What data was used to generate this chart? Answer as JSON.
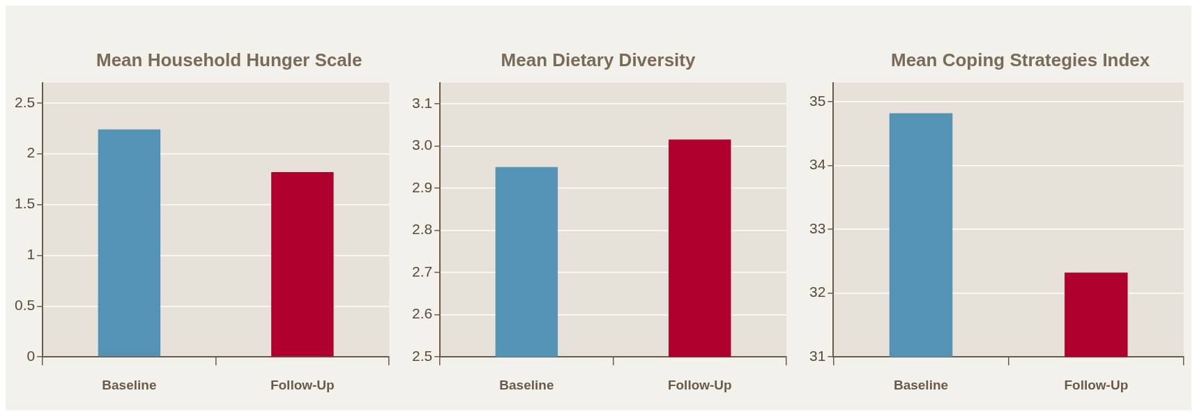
{
  "chart_data": [
    {
      "type": "bar",
      "title": "Mean Household Hunger Scale",
      "categories": [
        "Baseline",
        "Follow-Up"
      ],
      "values": [
        2.24,
        1.82
      ],
      "colors": [
        "#5593b5",
        "#b0002e"
      ],
      "ylim": [
        0,
        2.7
      ],
      "yticks": [
        0,
        0.5,
        1,
        1.5,
        2,
        2.5
      ],
      "grid": "y"
    },
    {
      "type": "bar",
      "title": "Mean Dietary Diversity",
      "categories": [
        "Baseline",
        "Follow-Up"
      ],
      "values": [
        2.95,
        3.015
      ],
      "colors": [
        "#5593b5",
        "#b0002e"
      ],
      "ylim": [
        2.5,
        3.15
      ],
      "yticks": [
        2.5,
        2.6,
        2.7,
        2.8,
        2.9,
        {
          "value": 3,
          "label": "3.0"
        },
        3.1
      ],
      "grid": "y"
    },
    {
      "type": "bar",
      "title": "Mean Coping Strategies Index",
      "categories": [
        "Baseline",
        "Follow-Up"
      ],
      "values": [
        34.82,
        32.32
      ],
      "colors": [
        "#5593b5",
        "#b0002e"
      ],
      "ylim": [
        31,
        35.3
      ],
      "yticks": [
        31,
        32,
        33,
        34,
        35
      ],
      "grid": "y"
    }
  ]
}
